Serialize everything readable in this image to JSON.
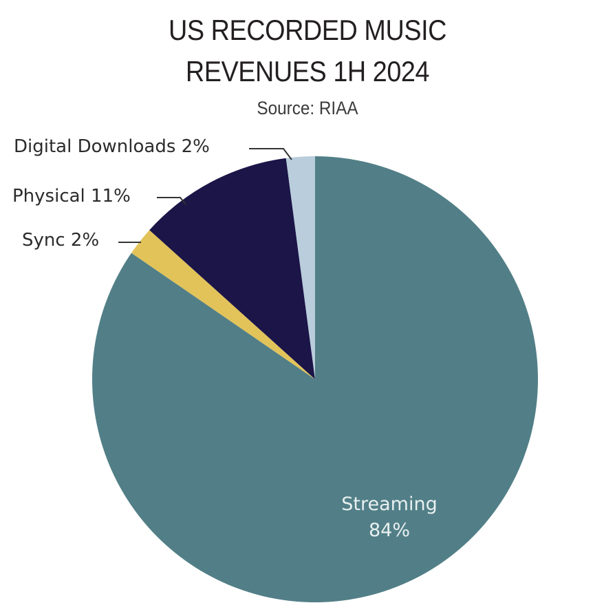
{
  "chart_data": {
    "type": "pie",
    "title": "US RECORDED MUSIC REVENUES 1H 2024",
    "title_line1": "US RECORDED MUSIC",
    "title_line2": "REVENUES 1H 2024",
    "subtitle": "Source: RIAA",
    "start_angle_deg": 0,
    "direction": "clockwise",
    "slices": [
      {
        "label": "Streaming",
        "value": 84,
        "display": "84%",
        "color": "#527f87"
      },
      {
        "label": "Sync",
        "value": 2,
        "display": "2%",
        "color": "#e2c35a"
      },
      {
        "label": "Physical",
        "value": 11,
        "display": "11%",
        "color": "#1b1548"
      },
      {
        "label": "Digital Downloads",
        "value": 2,
        "display": "2%",
        "color": "#b9cddc"
      }
    ]
  },
  "labels": {
    "digital": "Digital Downloads 2%",
    "physical": "Physical 11%",
    "sync": "Sync 2%",
    "streaming_name": "Streaming",
    "streaming_pct": "84%"
  }
}
